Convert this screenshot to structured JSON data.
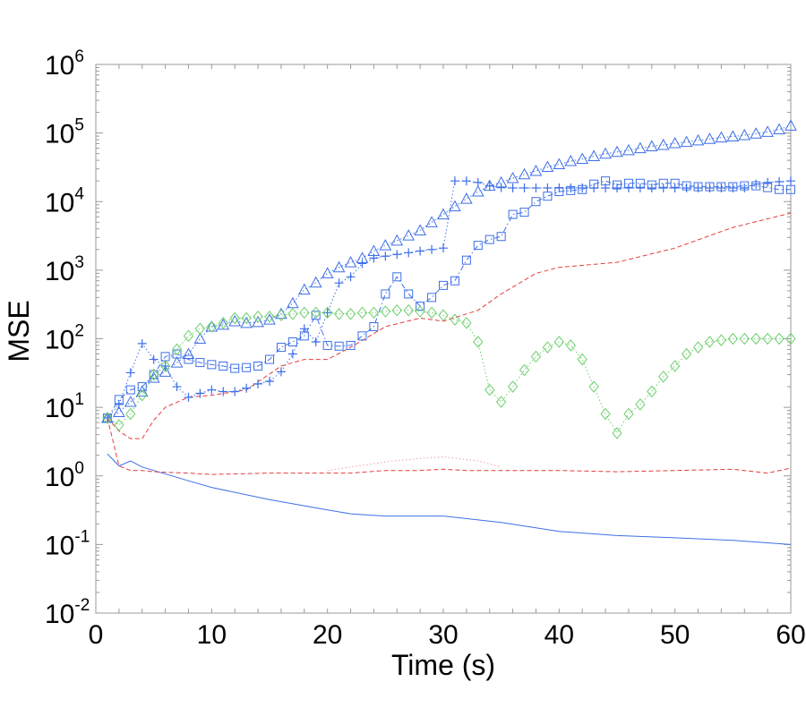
{
  "chart_data": {
    "type": "line",
    "title": "",
    "xlabel": "Time (s)",
    "ylabel": "MSE",
    "xlim": [
      0,
      60
    ],
    "ylim": [
      0.01,
      1000000
    ],
    "yscale": "log",
    "grid": false,
    "x_ticks": [
      0,
      10,
      20,
      30,
      40,
      50,
      60
    ],
    "x_tick_labels": [
      "0",
      "10",
      "20",
      "30",
      "40",
      "50",
      "60"
    ],
    "y_ticks": [
      {
        "value": 1000000,
        "base": "10",
        "exp": "6"
      },
      {
        "value": 100000,
        "base": "10",
        "exp": "5"
      },
      {
        "value": 10000,
        "base": "10",
        "exp": "4"
      },
      {
        "value": 1000,
        "base": "10",
        "exp": "3"
      },
      {
        "value": 100,
        "base": "10",
        "exp": "2"
      },
      {
        "value": 10,
        "base": "10",
        "exp": "1"
      },
      {
        "value": 1,
        "base": "10",
        "exp": "0"
      },
      {
        "value": 0.1,
        "base": "10",
        "exp": "-1"
      },
      {
        "value": 0.01,
        "base": "10",
        "exp": "-2"
      }
    ],
    "series": [
      {
        "color": "#3d6fe8",
        "line": "solid",
        "marker": "none",
        "x": [
          1,
          2,
          3,
          4,
          5,
          8,
          10,
          15,
          20,
          22,
          25,
          30,
          35,
          40,
          45,
          50,
          55,
          60
        ],
        "y": [
          2.1,
          1.4,
          1.65,
          1.35,
          1.2,
          0.85,
          0.68,
          0.45,
          0.32,
          0.28,
          0.26,
          0.26,
          0.21,
          0.155,
          0.135,
          0.125,
          0.115,
          0.1
        ]
      },
      {
        "color": "#e63c3c",
        "line": "dashed",
        "marker": "none",
        "x": [
          1,
          2,
          3,
          4,
          5,
          8,
          10,
          15,
          20,
          22,
          25,
          28,
          30,
          32,
          35,
          40,
          45,
          50,
          55,
          58,
          60
        ],
        "y": [
          7,
          1.4,
          1.2,
          1.2,
          1.15,
          1.1,
          1.05,
          1.1,
          1.1,
          1.1,
          1.2,
          1.2,
          1.25,
          1.2,
          1.2,
          1.2,
          1.15,
          1.2,
          1.25,
          1.1,
          1.3
        ]
      },
      {
        "color": "#f0a0a0",
        "line": "dotted",
        "marker": "none",
        "x": [
          20,
          22,
          25,
          28,
          30,
          33,
          35
        ],
        "y": [
          1.2,
          1.35,
          1.6,
          1.8,
          1.9,
          1.65,
          1.35
        ]
      },
      {
        "color": "#e63c3c",
        "line": "dashed",
        "marker": "none",
        "x": [
          1,
          2,
          3,
          4,
          5,
          6,
          8,
          10,
          13,
          16,
          18,
          20,
          22,
          25,
          28,
          30,
          33,
          35,
          38,
          40,
          45,
          50,
          55,
          60
        ],
        "y": [
          7,
          4.5,
          3.5,
          3.5,
          6.5,
          10,
          14,
          15,
          18,
          40,
          50,
          50,
          75,
          150,
          200,
          180,
          260,
          450,
          900,
          1100,
          1300,
          2100,
          4200,
          6800
        ]
      },
      {
        "color": "#3d6fe8",
        "line": "dotted",
        "marker": "plus",
        "x": [
          1,
          2,
          3,
          4,
          5,
          6,
          7,
          8,
          9,
          10,
          11,
          12,
          13,
          14,
          15,
          16,
          17,
          18,
          19,
          20,
          21,
          22,
          23,
          24,
          25,
          26,
          27,
          28,
          29,
          30,
          31,
          32,
          33,
          34,
          35,
          36,
          37,
          38,
          39,
          40,
          41,
          42,
          43,
          44,
          45,
          46,
          47,
          48,
          49,
          50,
          51,
          52,
          53,
          54,
          55,
          56,
          57,
          58,
          59,
          60
        ],
        "y": [
          7,
          11,
          32,
          85,
          50,
          40,
          20,
          14,
          16,
          18,
          17,
          17,
          19,
          22,
          24,
          33,
          60,
          140,
          90,
          240,
          650,
          800,
          1250,
          1500,
          1600,
          1700,
          1800,
          1900,
          2000,
          2100,
          20000,
          20000,
          19000,
          17000,
          16000,
          15800,
          15800,
          15800,
          15800,
          15800,
          15800,
          15800,
          15800,
          15800,
          15800,
          15800,
          15800,
          15800,
          15800,
          15800,
          15800,
          15800,
          15800,
          15800,
          15800,
          15800,
          18000,
          19000,
          19500,
          20000
        ]
      },
      {
        "color": "#3d6fe8",
        "line": "dash-dot",
        "marker": "square",
        "x": [
          1,
          2,
          3,
          4,
          5,
          6,
          7,
          8,
          9,
          10,
          11,
          12,
          13,
          14,
          15,
          16,
          17,
          18,
          19,
          20,
          21,
          22,
          23,
          24,
          25,
          26,
          27,
          28,
          29,
          30,
          31,
          32,
          33,
          34,
          35,
          36,
          37,
          38,
          39,
          40,
          41,
          42,
          43,
          44,
          45,
          46,
          47,
          48,
          49,
          50,
          51,
          52,
          53,
          54,
          55,
          56,
          57,
          58,
          59,
          60
        ],
        "y": [
          7,
          13,
          18,
          20,
          30,
          55,
          60,
          50,
          45,
          42,
          40,
          37,
          38,
          40,
          50,
          75,
          90,
          110,
          220,
          80,
          78,
          80,
          110,
          150,
          450,
          800,
          450,
          300,
          400,
          600,
          700,
          1400,
          2300,
          2800,
          3100,
          6500,
          7000,
          10000,
          12000,
          14000,
          14500,
          15000,
          18000,
          20000,
          17500,
          18500,
          18500,
          17500,
          18500,
          18500,
          17000,
          16500,
          16500,
          16500,
          16500,
          17000,
          17000,
          16000,
          15000,
          15000
        ]
      },
      {
        "color": "#3d6fe8",
        "line": "dotted",
        "marker": "triangle",
        "x": [
          1,
          2,
          3,
          4,
          5,
          6,
          7,
          8,
          9,
          10,
          11,
          12,
          13,
          14,
          15,
          16,
          17,
          18,
          19,
          20,
          21,
          22,
          23,
          24,
          25,
          26,
          27,
          28,
          29,
          30,
          31,
          32,
          33,
          34,
          35,
          36,
          37,
          38,
          39,
          40,
          41,
          42,
          43,
          44,
          45,
          46,
          47,
          48,
          49,
          50,
          51,
          52,
          53,
          54,
          55,
          56,
          57,
          58,
          59,
          60
        ],
        "y": [
          7,
          8.5,
          12,
          17,
          27,
          33,
          45,
          60,
          100,
          150,
          160,
          180,
          170,
          175,
          190,
          230,
          330,
          520,
          660,
          900,
          1100,
          1300,
          1500,
          1900,
          2300,
          2700,
          3200,
          3800,
          5000,
          6500,
          8500,
          11000,
          14000,
          17000,
          19000,
          22000,
          25000,
          28000,
          32000,
          35000,
          39000,
          42000,
          46000,
          50000,
          53000,
          56000,
          60000,
          64000,
          67000,
          71000,
          74000,
          78000,
          82000,
          86000,
          89000,
          93000,
          98000,
          104000,
          113000,
          128000
        ]
      },
      {
        "color": "#6ccf6c",
        "line": "dotted",
        "marker": "diamond",
        "x": [
          1,
          2,
          3,
          4,
          5,
          6,
          7,
          8,
          9,
          10,
          11,
          12,
          13,
          14,
          15,
          16,
          17,
          18,
          19,
          20,
          21,
          22,
          23,
          24,
          25,
          26,
          27,
          28,
          29,
          30,
          31,
          32,
          33,
          34,
          35,
          36,
          37,
          38,
          39,
          40,
          41,
          42,
          43,
          44,
          45,
          46,
          47,
          48,
          49,
          50,
          51,
          52,
          53,
          54,
          55,
          56,
          57,
          58,
          59,
          60
        ],
        "y": [
          7,
          5.5,
          8,
          15,
          30,
          40,
          70,
          110,
          140,
          150,
          170,
          200,
          200,
          210,
          210,
          220,
          230,
          240,
          240,
          240,
          230,
          230,
          240,
          240,
          250,
          260,
          260,
          250,
          240,
          220,
          190,
          170,
          90,
          18,
          12,
          20,
          35,
          55,
          75,
          90,
          80,
          50,
          20,
          8,
          4.2,
          8,
          11,
          17,
          28,
          40,
          60,
          75,
          90,
          95,
          100,
          100,
          100,
          100,
          100,
          100
        ]
      }
    ]
  }
}
